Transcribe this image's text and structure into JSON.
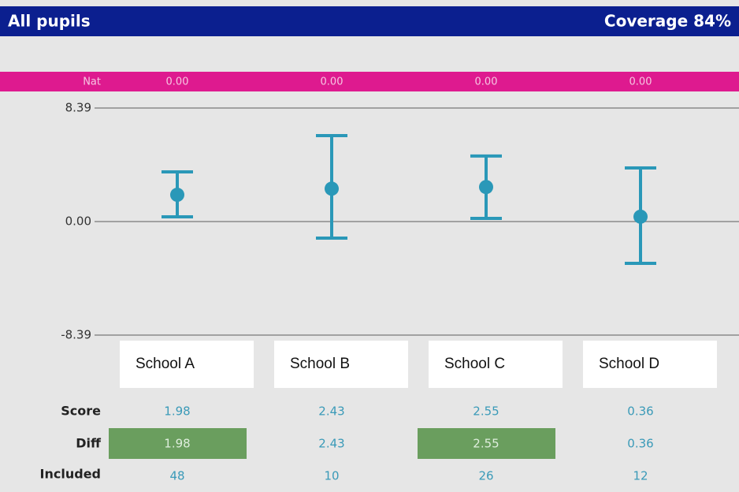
{
  "chart_data": {
    "type": "errorbar",
    "title": "All pupils",
    "coverage": "Coverage 84%",
    "nat": {
      "label": "Nat",
      "values": [
        0,
        0,
        0,
        0
      ],
      "value_labels": [
        "0.00",
        "0.00",
        "0.00",
        "0.00"
      ]
    },
    "categories": [
      "School A",
      "School B",
      "School C",
      "School D"
    ],
    "values": [
      1.98,
      2.43,
      2.55,
      0.36
    ],
    "upper": [
      3.67,
      6.35,
      4.84,
      3.96
    ],
    "lower": [
      0.35,
      -1.22,
      0.23,
      -3.09
    ],
    "color": "#2a98b8",
    "ylim": [
      -8.39,
      8.39
    ],
    "yticks": [
      -8.39,
      {
        "value": 0,
        "label": "0.00"
      },
      8.39
    ],
    "rows": {
      "score_label": "Score",
      "diff_label": "Diff",
      "diff": [
        1.98,
        2.43,
        2.55,
        0.36
      ],
      "diff_highlight": [
        true,
        false,
        true,
        false
      ],
      "highlight_color": "#6a9e5e",
      "included_label": "Included",
      "included": [
        48,
        10,
        26,
        12
      ]
    }
  }
}
